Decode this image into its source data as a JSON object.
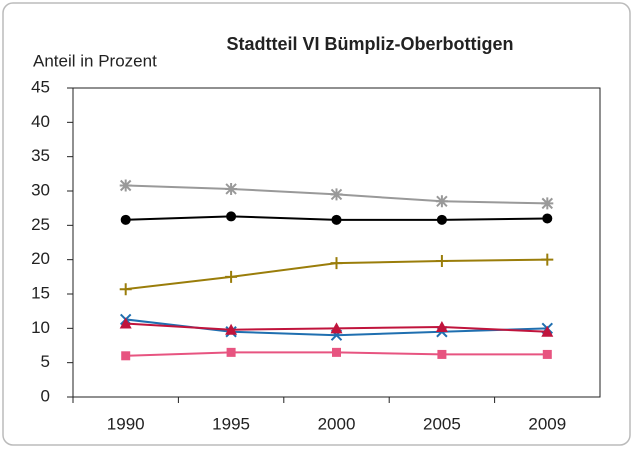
{
  "chart_data": {
    "type": "line",
    "title": "Stadtteil VI Bümpliz-Oberbottigen",
    "y_label": "Anteil in Prozent",
    "categories": [
      "1990",
      "1995",
      "2000",
      "2005",
      "2009"
    ],
    "ylim": [
      0,
      45
    ],
    "yticks": [
      0,
      5,
      10,
      15,
      20,
      25,
      30,
      35,
      40,
      45
    ],
    "grid": false,
    "series": [
      {
        "color": "#999999",
        "marker": "asterisk",
        "values": [
          30.8,
          30.3,
          29.5,
          28.5,
          28.2
        ]
      },
      {
        "color": "#000000",
        "marker": "circle",
        "values": [
          25.8,
          26.3,
          25.8,
          25.8,
          26.0
        ]
      },
      {
        "color": "#9a7d0a",
        "marker": "plus",
        "values": [
          15.7,
          17.5,
          19.5,
          19.8,
          20.0
        ]
      },
      {
        "color": "#1f6fb0",
        "marker": "cross",
        "values": [
          11.3,
          9.5,
          9.0,
          9.5,
          10.0
        ]
      },
      {
        "color": "#c0143c",
        "marker": "triangle",
        "values": [
          10.7,
          9.8,
          10.0,
          10.2,
          9.5
        ]
      },
      {
        "color": "#e75480",
        "marker": "square",
        "values": [
          6.0,
          6.5,
          6.5,
          6.2,
          6.2
        ]
      }
    ]
  }
}
